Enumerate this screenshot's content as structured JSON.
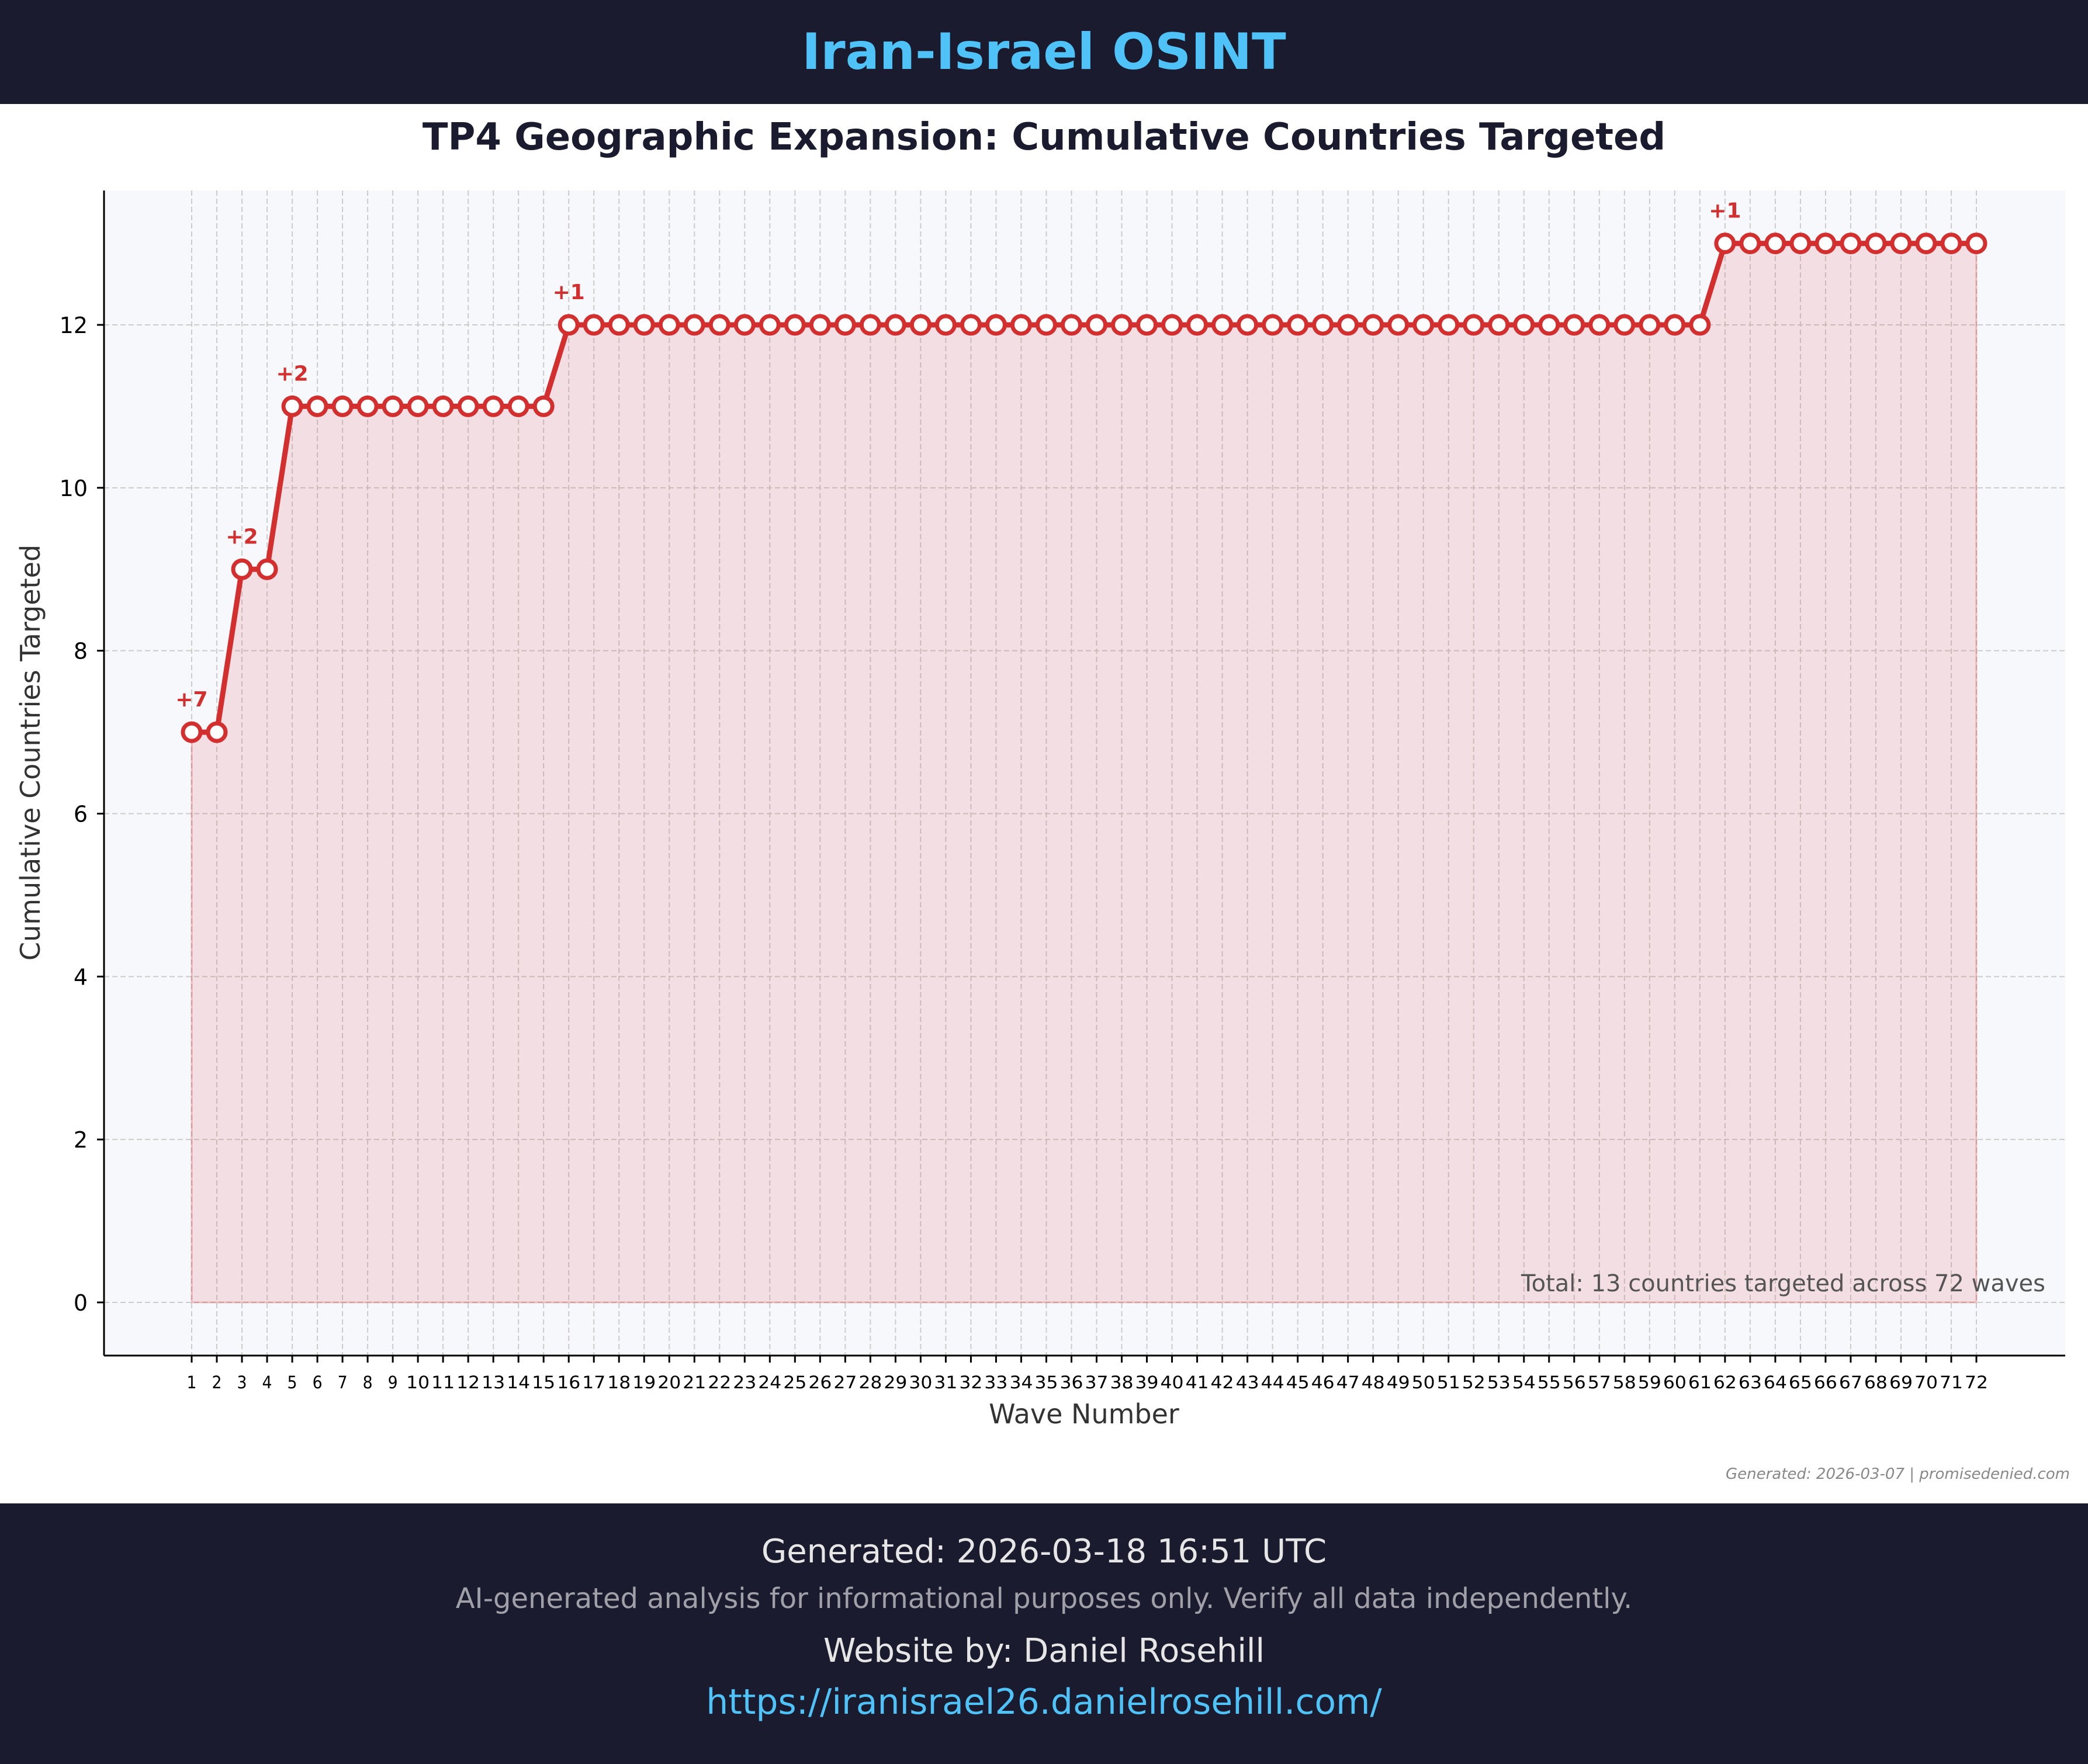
{
  "header": {
    "title": "Iran-Israel OSINT"
  },
  "chart_data": {
    "type": "line",
    "title": "TP4 Geographic Expansion: Cumulative Countries Targeted",
    "xlabel": "Wave Number",
    "ylabel": "Cumulative Countries Targeted",
    "x": [
      1,
      2,
      3,
      4,
      5,
      6,
      7,
      8,
      9,
      10,
      11,
      12,
      13,
      14,
      15,
      16,
      17,
      18,
      19,
      20,
      21,
      22,
      23,
      24,
      25,
      26,
      27,
      28,
      29,
      30,
      31,
      32,
      33,
      34,
      35,
      36,
      37,
      38,
      39,
      40,
      41,
      42,
      43,
      44,
      45,
      46,
      47,
      48,
      49,
      50,
      51,
      52,
      53,
      54,
      55,
      56,
      57,
      58,
      59,
      60,
      61,
      62,
      63,
      64,
      65,
      66,
      67,
      68,
      69,
      70,
      71,
      72
    ],
    "series": [
      {
        "name": "Cumulative Countries Targeted",
        "color": "#d32f2f",
        "values": [
          7,
          7,
          9,
          9,
          11,
          11,
          11,
          11,
          11,
          11,
          11,
          11,
          11,
          11,
          11,
          12,
          12,
          12,
          12,
          12,
          12,
          12,
          12,
          12,
          12,
          12,
          12,
          12,
          12,
          12,
          12,
          12,
          12,
          12,
          12,
          12,
          12,
          12,
          12,
          12,
          12,
          12,
          12,
          12,
          12,
          12,
          12,
          12,
          12,
          12,
          12,
          12,
          12,
          12,
          12,
          12,
          12,
          12,
          12,
          12,
          12,
          13,
          13,
          13,
          13,
          13,
          13,
          13,
          13,
          13,
          13,
          13
        ]
      }
    ],
    "annotations": [
      {
        "wave": 1,
        "value": 7,
        "label": "+7"
      },
      {
        "wave": 3,
        "value": 9,
        "label": "+2"
      },
      {
        "wave": 5,
        "value": 11,
        "label": "+2"
      },
      {
        "wave": 16,
        "value": 12,
        "label": "+1"
      },
      {
        "wave": 62,
        "value": 13,
        "label": "+1"
      }
    ],
    "yticks": [
      0,
      2,
      4,
      6,
      8,
      10,
      12
    ],
    "ylim": [
      -0.65,
      13.65
    ],
    "xlim": [
      -2.5,
      75.5
    ],
    "grid": true,
    "fill_under": true,
    "summary_text": "Total: 13 countries targeted across 72 waves",
    "watermark": "Generated: 2026-03-07 | promisedenied.com"
  },
  "footer": {
    "generated": "Generated: 2026-03-18 16:51 UTC",
    "disclaimer": "AI-generated analysis for informational purposes only. Verify all data independently.",
    "credit": "Website by: Daniel Rosehill",
    "url": "https://iranisrael26.danielrosehill.com/"
  }
}
